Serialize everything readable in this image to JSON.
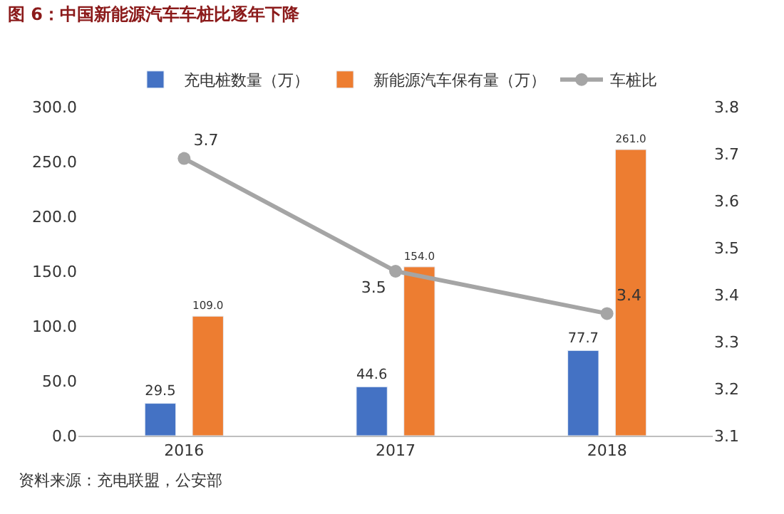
{
  "chart_data": {
    "type": "bar",
    "title": "图 6：中国新能源汽车车桩比逐年下降",
    "categories": [
      "2016",
      "2017",
      "2018"
    ],
    "series": [
      {
        "name": "充电桩数量（万）",
        "color": "#4472c4",
        "values": [
          29.5,
          44.6,
          77.7
        ],
        "value_labels": [
          "29.5",
          "44.6",
          "77.7"
        ]
      },
      {
        "name": "新能源汽车保有量（万）",
        "color": "#ed7d31",
        "values": [
          109.0,
          154.0,
          261.0
        ],
        "value_labels": [
          "109.0",
          "154.0",
          "261.0"
        ]
      },
      {
        "name": "车桩比",
        "type": "line",
        "axis": "y2",
        "color": "#a5a5a5",
        "marker": "circle",
        "values": [
          3.69,
          3.45,
          3.36
        ],
        "value_labels": [
          "3.7",
          "3.5",
          "3.4"
        ]
      }
    ],
    "ylim": [
      0,
      300
    ],
    "yticks": [
      {
        "value": 0,
        "label": "0.0"
      },
      {
        "value": 50,
        "label": "50.0"
      },
      {
        "value": 100,
        "label": "100.0"
      },
      {
        "value": 150,
        "label": "150.0"
      },
      {
        "value": 200,
        "label": "200.0"
      },
      {
        "value": 250,
        "label": "250.0"
      },
      {
        "value": 300,
        "label": "300.0"
      }
    ],
    "y2lim": [
      3.1,
      3.8
    ],
    "y2ticks": [
      3.1,
      3.2,
      3.3,
      3.4,
      3.5,
      3.6,
      3.7,
      3.8
    ],
    "grid": false,
    "legend": "top",
    "annotations": [
      "资料来源：充电联盟，公安部"
    ]
  }
}
